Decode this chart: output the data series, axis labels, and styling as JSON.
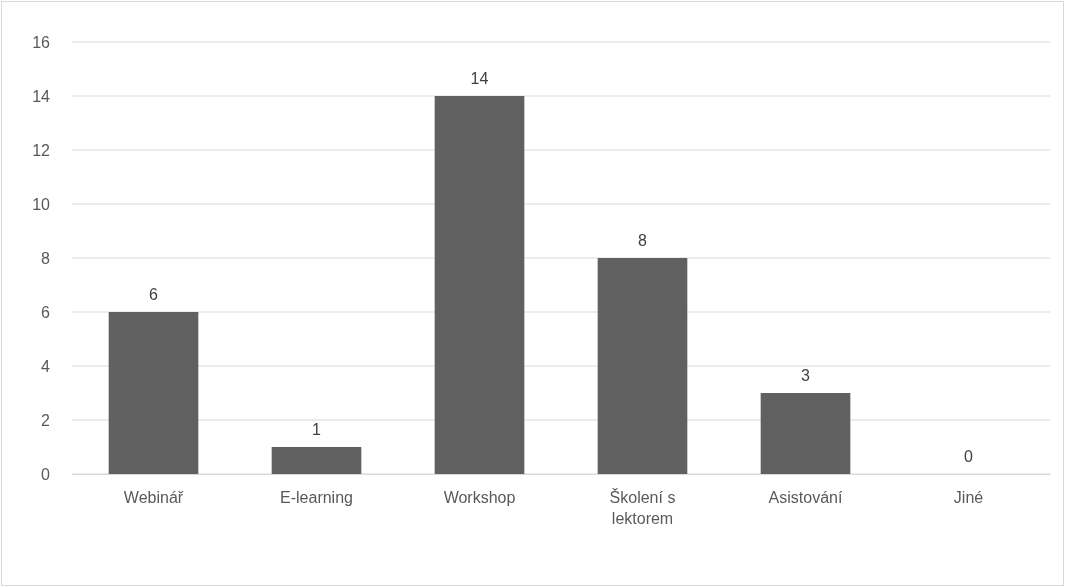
{
  "chart_data": {
    "type": "bar",
    "categories": [
      "Webinář",
      "E-learning",
      "Workshop",
      "Školení s lektorem",
      "Asistování",
      "Jiné"
    ],
    "values": [
      6,
      1,
      14,
      8,
      3,
      0
    ],
    "color": "#606060",
    "ylim": [
      0,
      16
    ],
    "yticks": [
      0,
      2,
      4,
      6,
      8,
      10,
      12,
      14,
      16
    ],
    "grid": "y",
    "data_labels": true
  }
}
